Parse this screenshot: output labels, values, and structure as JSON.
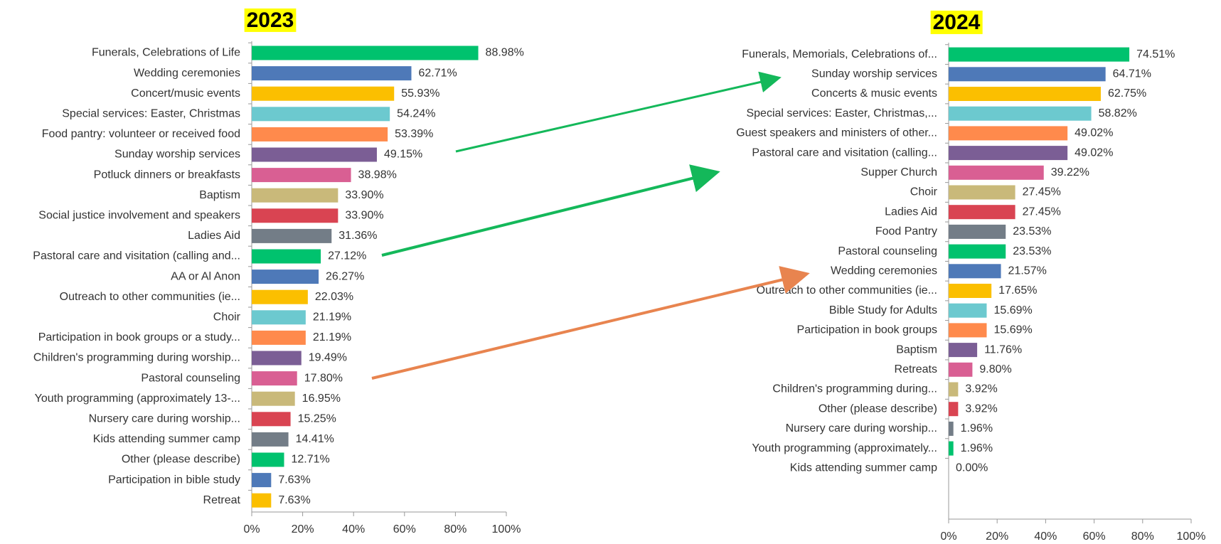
{
  "chart_data": [
    {
      "type": "bar",
      "orientation": "horizontal",
      "title": "2023",
      "categories": [
        "Funerals, Celebrations of Life",
        "Wedding ceremonies",
        "Concert/music events",
        "Special services: Easter, Christmas",
        "Food pantry: volunteer or received food",
        "Sunday worship services",
        "Potluck dinners or breakfasts",
        "Baptism",
        "Social justice involvement and speakers",
        "Ladies Aid",
        "Pastoral care and visitation (calling and...",
        "AA or Al Anon",
        "Outreach to other communities (ie...",
        "Choir",
        "Participation in book groups or a study...",
        "Children's programming during worship...",
        "Pastoral counseling",
        "Youth programming (approximately 13-...",
        "Nursery care during worship...",
        "Kids attending summer camp",
        "Other (please describe)",
        "Participation in bible study",
        "Retreat"
      ],
      "values": [
        88.98,
        62.71,
        55.93,
        54.24,
        53.39,
        49.15,
        38.98,
        33.9,
        33.9,
        31.36,
        27.12,
        26.27,
        22.03,
        21.19,
        21.19,
        19.49,
        17.8,
        16.95,
        15.25,
        14.41,
        12.71,
        7.63,
        7.63
      ],
      "value_labels": [
        "88.98%",
        "62.71%",
        "55.93%",
        "54.24%",
        "53.39%",
        "49.15%",
        "38.98%",
        "33.90%",
        "33.90%",
        "31.36%",
        "27.12%",
        "26.27%",
        "22.03%",
        "21.19%",
        "21.19%",
        "19.49%",
        "17.80%",
        "16.95%",
        "15.25%",
        "14.41%",
        "12.71%",
        "7.63%",
        "7.63%"
      ],
      "palette": [
        "#00c26e",
        "#4e79b8",
        "#fbbf00",
        "#6cc9cf",
        "#ff8a4c",
        "#7b5e95",
        "#d95f93",
        "#c9b97a",
        "#d94452",
        "#737d87"
      ],
      "xlim": [
        0,
        100
      ],
      "xticks": [
        {
          "value": 0,
          "label": "0%"
        },
        {
          "value": 20,
          "label": "20%"
        },
        {
          "value": 40,
          "label": "40%"
        },
        {
          "value": 60,
          "label": "60%"
        },
        {
          "value": 80,
          "label": "80%"
        },
        {
          "value": 100,
          "label": "100%"
        }
      ]
    },
    {
      "type": "bar",
      "orientation": "horizontal",
      "title": "2024",
      "categories": [
        "Funerals, Memorials, Celebrations of...",
        "Sunday worship services",
        "Concerts & music events",
        "Special services: Easter, Christmas,...",
        "Guest speakers and ministers of other...",
        "Pastoral care and visitation (calling...",
        "Supper Church",
        "Choir",
        "Ladies Aid",
        "Food Pantry",
        "Pastoral counseling",
        "Wedding ceremonies",
        "Outreach to other communities (ie...",
        "Bible Study for Adults",
        "Participation in book groups",
        "Baptism",
        "Retreats",
        "Children's programming during...",
        "Other (please describe)",
        "Nursery care during worship...",
        "Youth programming (approximately...",
        "Kids attending summer camp"
      ],
      "values": [
        74.51,
        64.71,
        62.75,
        58.82,
        49.02,
        49.02,
        39.22,
        27.45,
        27.45,
        23.53,
        23.53,
        21.57,
        17.65,
        15.69,
        15.69,
        11.76,
        9.8,
        3.92,
        3.92,
        1.96,
        1.96,
        0
      ],
      "value_labels": [
        "74.51%",
        "64.71%",
        "62.75%",
        "58.82%",
        "49.02%",
        "49.02%",
        "39.22%",
        "27.45%",
        "27.45%",
        "23.53%",
        "23.53%",
        "21.57%",
        "17.65%",
        "15.69%",
        "15.69%",
        "11.76%",
        "9.80%",
        "3.92%",
        "3.92%",
        "1.96%",
        "1.96%",
        "0.00%"
      ],
      "palette": [
        "#00c26e",
        "#4e79b8",
        "#fbbf00",
        "#6cc9cf",
        "#ff8a4c",
        "#7b5e95",
        "#d95f93",
        "#c9b97a",
        "#d94452",
        "#737d87"
      ],
      "xlim": [
        0,
        100
      ],
      "xticks": [
        {
          "value": 0,
          "label": "0%"
        },
        {
          "value": 20,
          "label": "20%"
        },
        {
          "value": 40,
          "label": "40%"
        },
        {
          "value": 60,
          "label": "60%"
        },
        {
          "value": 80,
          "label": "80%"
        },
        {
          "value": 100,
          "label": "100%"
        }
      ]
    }
  ]
}
